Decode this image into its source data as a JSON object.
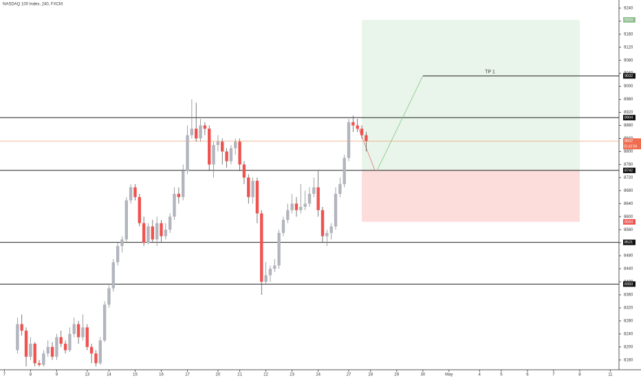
{
  "chart_data": {
    "type": "candlestick",
    "title": "NASDAQ 100 Index, 240, FXCM",
    "xlim": [
      0,
      142
    ],
    "xticks": [
      {
        "value": 1,
        "label": "7"
      },
      {
        "value": 7,
        "label": "8"
      },
      {
        "value": 13,
        "label": "9"
      },
      {
        "value": 20,
        "label": "13"
      },
      {
        "value": 25,
        "label": "14"
      },
      {
        "value": 31,
        "label": "15"
      },
      {
        "value": 37,
        "label": "16"
      },
      {
        "value": 43,
        "label": "17"
      },
      {
        "value": 50,
        "label": "20"
      },
      {
        "value": 55,
        "label": "21"
      },
      {
        "value": 61,
        "label": "22"
      },
      {
        "value": 67,
        "label": "23"
      },
      {
        "value": 73,
        "label": "24"
      },
      {
        "value": 80,
        "label": "27"
      },
      {
        "value": 85,
        "label": "28"
      },
      {
        "value": 91,
        "label": "29"
      },
      {
        "value": 97,
        "label": "30"
      },
      {
        "value": 103,
        "label": "May"
      },
      {
        "value": 110,
        "label": "4"
      },
      {
        "value": 115,
        "label": "5"
      },
      {
        "value": 121,
        "label": "6"
      },
      {
        "value": 127,
        "label": "7"
      },
      {
        "value": 133,
        "label": "8"
      },
      {
        "value": 140,
        "label": "11"
      }
    ],
    "ylim": [
      8130,
      9265
    ],
    "yticks": [
      8160,
      8200,
      8240,
      8280,
      8320,
      8360,
      8400,
      8440,
      8480,
      8520,
      8560,
      8600,
      8640,
      8680,
      8720,
      8760,
      8800,
      8840,
      8880,
      8920,
      8960,
      9000,
      9040,
      9080,
      9120,
      9160,
      9200,
      9240
    ],
    "up_color": "#b2b5be",
    "down_color": "#ef5350",
    "candles": {
      "x": [
        4,
        5,
        6,
        7,
        8,
        9,
        10,
        11,
        12,
        13,
        14,
        15,
        16,
        17,
        18,
        19,
        20,
        21,
        22,
        23,
        24,
        25,
        26,
        27,
        28,
        29,
        30,
        31,
        32,
        33,
        34,
        35,
        36,
        37,
        38,
        39,
        40,
        41,
        42,
        43,
        44,
        45,
        46,
        47,
        48,
        49,
        50,
        51,
        52,
        53,
        54,
        55,
        56,
        57,
        58,
        59,
        60,
        61,
        62,
        63,
        64,
        65,
        66,
        67,
        68,
        69,
        70,
        71,
        72,
        73,
        74,
        75,
        76,
        77,
        78,
        79,
        80,
        81,
        82,
        83,
        84
      ],
      "open": [
        8190,
        8270,
        8250,
        8170,
        8210,
        8150,
        8145,
        8180,
        8200,
        8170,
        8230,
        8210,
        8190,
        8240,
        8270,
        8230,
        8260,
        8200,
        8180,
        8150,
        8220,
        8330,
        8380,
        8460,
        8510,
        8530,
        8650,
        8690,
        8660,
        8580,
        8520,
        8570,
        8530,
        8580,
        8540,
        8560,
        8600,
        8670,
        8660,
        8740,
        8850,
        8870,
        8840,
        8880,
        8870,
        8760,
        8820,
        8830,
        8800,
        8770,
        8810,
        8830,
        8760,
        8720,
        8660,
        8710,
        8610,
        8400,
        8420,
        8440,
        8450,
        8550,
        8590,
        8620,
        8640,
        8620,
        8630,
        8640,
        8670,
        8690,
        8620,
        8540,
        8550,
        8570,
        8670,
        8700,
        8780,
        8890,
        8880,
        8870,
        8850
      ],
      "close": [
        8270,
        8250,
        8170,
        8210,
        8150,
        8145,
        8180,
        8200,
        8170,
        8230,
        8210,
        8190,
        8240,
        8270,
        8230,
        8260,
        8200,
        8180,
        8150,
        8220,
        8330,
        8380,
        8460,
        8510,
        8530,
        8650,
        8690,
        8660,
        8580,
        8520,
        8570,
        8530,
        8580,
        8540,
        8560,
        8600,
        8670,
        8660,
        8740,
        8850,
        8870,
        8840,
        8880,
        8870,
        8760,
        8820,
        8830,
        8800,
        8770,
        8810,
        8830,
        8760,
        8720,
        8660,
        8710,
        8610,
        8400,
        8420,
        8440,
        8450,
        8550,
        8590,
        8620,
        8640,
        8620,
        8630,
        8640,
        8670,
        8690,
        8620,
        8540,
        8550,
        8570,
        8670,
        8700,
        8780,
        8890,
        8880,
        8870,
        8850,
        8832
      ],
      "high": [
        8290,
        8300,
        8260,
        8230,
        8215,
        8160,
        8190,
        8220,
        8215,
        8240,
        8250,
        8220,
        8260,
        8290,
        8280,
        8300,
        8270,
        8210,
        8190,
        8230,
        8340,
        8390,
        8470,
        8520,
        8540,
        8660,
        8700,
        8700,
        8670,
        8600,
        8580,
        8590,
        8600,
        8590,
        8580,
        8610,
        8690,
        8690,
        8760,
        8880,
        8960,
        8950,
        8900,
        8890,
        8880,
        8830,
        8850,
        8840,
        8810,
        8820,
        8840,
        8840,
        8770,
        8730,
        8720,
        8720,
        8620,
        8460,
        8450,
        8470,
        8560,
        8600,
        8640,
        8670,
        8660,
        8700,
        8680,
        8690,
        8720,
        8740,
        8630,
        8560,
        8580,
        8690,
        8720,
        8790,
        8900,
        8910,
        8900,
        8880,
        8860
      ],
      "low": [
        8180,
        8235,
        8140,
        8160,
        8140,
        8140,
        8140,
        8170,
        8160,
        8160,
        8200,
        8180,
        8185,
        8230,
        8210,
        8220,
        8190,
        8150,
        8140,
        8145,
        8215,
        8320,
        8370,
        8450,
        8490,
        8520,
        8640,
        8650,
        8570,
        8510,
        8515,
        8520,
        8510,
        8520,
        8530,
        8550,
        8590,
        8640,
        8650,
        8730,
        8840,
        8830,
        8830,
        8850,
        8740,
        8720,
        8800,
        8760,
        8750,
        8760,
        8790,
        8740,
        8700,
        8640,
        8640,
        8580,
        8360,
        8390,
        8400,
        8430,
        8440,
        8540,
        8580,
        8610,
        8600,
        8610,
        8620,
        8630,
        8660,
        8600,
        8520,
        8510,
        8530,
        8560,
        8660,
        8690,
        8770,
        8860,
        8860,
        8840,
        8800
      ]
    },
    "levels": [
      8904,
      8742,
      8521,
      8393
    ],
    "last_price": 8832,
    "countdown": "01:42:56",
    "position": {
      "start": 83,
      "end": 133,
      "target": 9204,
      "entry": 8742,
      "stop": 8584,
      "tp": 9032,
      "tp_label": "TP 1",
      "tp_start": 97,
      "path_x": [
        82,
        86,
        86.5,
        97
      ],
      "path_y": [
        8880,
        8742,
        8742,
        9032
      ]
    }
  }
}
